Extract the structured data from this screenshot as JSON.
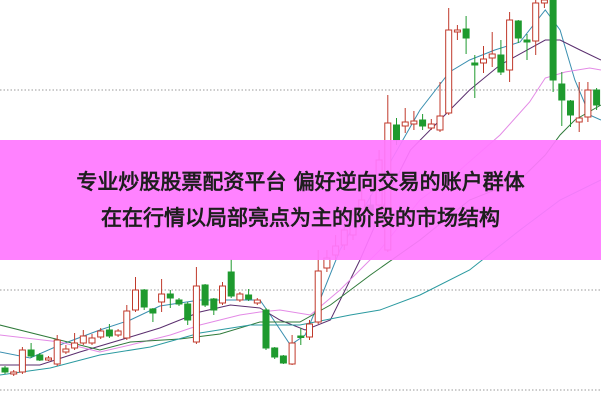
{
  "banner": {
    "line1": "专业炒股股票配资平台 偏好逆向交易的账户群体",
    "line2": "在在行情以局部亮点为主的阶段的市场结构"
  },
  "chart_data": {
    "type": "candlestick",
    "title": "",
    "grid": "horizontal dotted",
    "colors": {
      "up": "#c0392b",
      "down": "#1e9a2e",
      "ma5": "#3a8fb0",
      "ma10": "#5a2e6e",
      "ma20": "#e38ae6",
      "ma30": "#2f7a3a",
      "ma60": "#2b9aa0",
      "grid": "#999999"
    },
    "candles_ohlc": [
      [
        32,
        34,
        26,
        28
      ],
      [
        26,
        30,
        24,
        28
      ],
      [
        28,
        53,
        26,
        50
      ],
      [
        50,
        57,
        42,
        44
      ],
      [
        45,
        47,
        39,
        40
      ],
      [
        40,
        44,
        39,
        42
      ],
      [
        36,
        65,
        34,
        60
      ],
      [
        48,
        55,
        46,
        51
      ],
      [
        52,
        67,
        50,
        57
      ],
      [
        57,
        70,
        55,
        64
      ],
      [
        57,
        66,
        55,
        62
      ],
      [
        63,
        72,
        61,
        69
      ],
      [
        70,
        76,
        62,
        64
      ],
      [
        65,
        71,
        63,
        69
      ],
      [
        62,
        95,
        60,
        89
      ],
      [
        90,
        123,
        88,
        110
      ],
      [
        110,
        111,
        90,
        93
      ],
      [
        91,
        92,
        78,
        87
      ],
      [
        98,
        121,
        88,
        106
      ],
      [
        106,
        110,
        92,
        102
      ],
      [
        100,
        102,
        94,
        96
      ],
      [
        96,
        98,
        75,
        80
      ],
      [
        58,
        133,
        56,
        114
      ],
      [
        115,
        116,
        93,
        95
      ],
      [
        101,
        102,
        85,
        90
      ],
      [
        97,
        118,
        95,
        114
      ],
      [
        128,
        141,
        102,
        104
      ],
      [
        100,
        108,
        98,
        106
      ],
      [
        105,
        111,
        99,
        101
      ],
      [
        97,
        102,
        95,
        100
      ],
      [
        90,
        92,
        50,
        52
      ],
      [
        52,
        53,
        41,
        43
      ],
      [
        44,
        45,
        36,
        37
      ],
      [
        36,
        65,
        35,
        57
      ],
      [
        64,
        72,
        55,
        63
      ],
      [
        63,
        80,
        60,
        76
      ],
      [
        78,
        150,
        76,
        129
      ],
      [
        132,
        150,
        128,
        142
      ],
      [
        145,
        165,
        140,
        154
      ],
      [
        155,
        178,
        150,
        170
      ],
      [
        165,
        192,
        160,
        185
      ],
      [
        180,
        210,
        175,
        200
      ],
      [
        195,
        205,
        180,
        185
      ],
      [
        195,
        250,
        190,
        240
      ],
      [
        150,
        305,
        148,
        277
      ],
      [
        275,
        282,
        255,
        260
      ],
      [
        274,
        292,
        267,
        278
      ],
      [
        276,
        289,
        270,
        279
      ],
      [
        280,
        286,
        270,
        274
      ],
      [
        272,
        281,
        270,
        276
      ],
      [
        270,
        318,
        268,
        284
      ],
      [
        287,
        392,
        285,
        370
      ],
      [
        368,
        375,
        360,
        370
      ],
      [
        371,
        384,
        346,
        362
      ],
      [
        337,
        345,
        302,
        335
      ],
      [
        337,
        354,
        327,
        341
      ],
      [
        342,
        368,
        333,
        346
      ],
      [
        345,
        360,
        325,
        328
      ],
      [
        330,
        388,
        318,
        380
      ],
      [
        379,
        380,
        357,
        362
      ],
      [
        360,
        366,
        340,
        358
      ],
      [
        359,
        400,
        345,
        397
      ],
      [
        397,
        400,
        392,
        400
      ],
      [
        400,
        400,
        308,
        320
      ],
      [
        316,
        328,
        274,
        300
      ],
      [
        299,
        300,
        273,
        285
      ],
      [
        278,
        318,
        268,
        282
      ],
      [
        283,
        318,
        278,
        310
      ],
      [
        310,
        312,
        290,
        295
      ]
    ],
    "moving_averages": [
      {
        "key": "ma5",
        "points": [
          [
            -0.6,
            48
          ],
          [
            2.9,
            42
          ],
          [
            6.3,
            55
          ],
          [
            10.9,
            70
          ],
          [
            14.4,
            80
          ],
          [
            17.8,
            94
          ],
          [
            22.4,
            100
          ],
          [
            25.9,
            100
          ],
          [
            29.3,
            100
          ],
          [
            30.5,
            85
          ],
          [
            32.8,
            55
          ],
          [
            34.5,
            65
          ],
          [
            36.2,
            100
          ],
          [
            38.5,
            150
          ],
          [
            43.1,
            220
          ],
          [
            47.7,
            290
          ],
          [
            51.1,
            328
          ],
          [
            53.4,
            340
          ],
          [
            56.3,
            350
          ],
          [
            59.2,
            358
          ],
          [
            62.1,
            390
          ],
          [
            63.8,
            370
          ],
          [
            65.5,
            320
          ],
          [
            67.2,
            285
          ],
          [
            68.5,
            280
          ]
        ]
      },
      {
        "key": "ma10",
        "points": [
          [
            -0.6,
            35
          ],
          [
            4,
            35
          ],
          [
            8.6,
            48
          ],
          [
            14.4,
            63
          ],
          [
            17.8,
            72
          ],
          [
            22.4,
            88
          ],
          [
            25.9,
            95
          ],
          [
            29.3,
            92
          ],
          [
            31.6,
            80
          ],
          [
            34.5,
            70
          ],
          [
            37.4,
            80
          ],
          [
            40.8,
            140
          ],
          [
            44.3,
            210
          ],
          [
            46.6,
            250
          ],
          [
            50,
            280
          ],
          [
            53.4,
            310
          ],
          [
            56.9,
            335
          ],
          [
            62.1,
            360
          ],
          [
            63.8,
            360
          ],
          [
            66.1,
            350
          ],
          [
            68.5,
            340
          ]
        ]
      },
      {
        "key": "ma20",
        "points": [
          [
            -0.6,
            65
          ],
          [
            6.3,
            58
          ],
          [
            10.9,
            48
          ],
          [
            14.4,
            55
          ],
          [
            19,
            65
          ],
          [
            22.4,
            75
          ],
          [
            27,
            85
          ],
          [
            29.3,
            88
          ],
          [
            31.6,
            90
          ],
          [
            35.1,
            85
          ],
          [
            38.5,
            110
          ],
          [
            43.1,
            150
          ],
          [
            47.7,
            200
          ],
          [
            52.3,
            230
          ],
          [
            56.9,
            265
          ],
          [
            60.3,
            298
          ],
          [
            62.1,
            322
          ],
          [
            64.4,
            328
          ],
          [
            67.2,
            332
          ],
          [
            68.5,
            330
          ]
        ]
      },
      {
        "key": "ma30",
        "points": [
          [
            -0.6,
            75
          ],
          [
            6.3,
            60
          ],
          [
            10.9,
            50
          ],
          [
            14.4,
            58
          ],
          [
            20.1,
            61
          ],
          [
            24.7,
            66
          ],
          [
            29.3,
            78
          ],
          [
            33.9,
            78
          ],
          [
            37.4,
            95
          ],
          [
            42,
            125
          ],
          [
            47.7,
            160
          ],
          [
            53.4,
            200
          ],
          [
            59.2,
            220
          ],
          [
            62.1,
            245
          ],
          [
            63.8,
            265
          ],
          [
            65.5,
            280
          ],
          [
            68.5,
            295
          ]
        ]
      },
      {
        "key": "ma60",
        "points": [
          [
            -0.6,
            25
          ],
          [
            5.2,
            32
          ],
          [
            10.9,
            45
          ],
          [
            16.7,
            53
          ],
          [
            22.4,
            67
          ],
          [
            28.2,
            75
          ],
          [
            33.9,
            75
          ],
          [
            39.7,
            85
          ],
          [
            43.1,
            90
          ],
          [
            47.7,
            105
          ],
          [
            53.4,
            130
          ],
          [
            59.2,
            170
          ],
          [
            63.8,
            200
          ],
          [
            68.5,
            220
          ]
        ]
      }
    ]
  }
}
